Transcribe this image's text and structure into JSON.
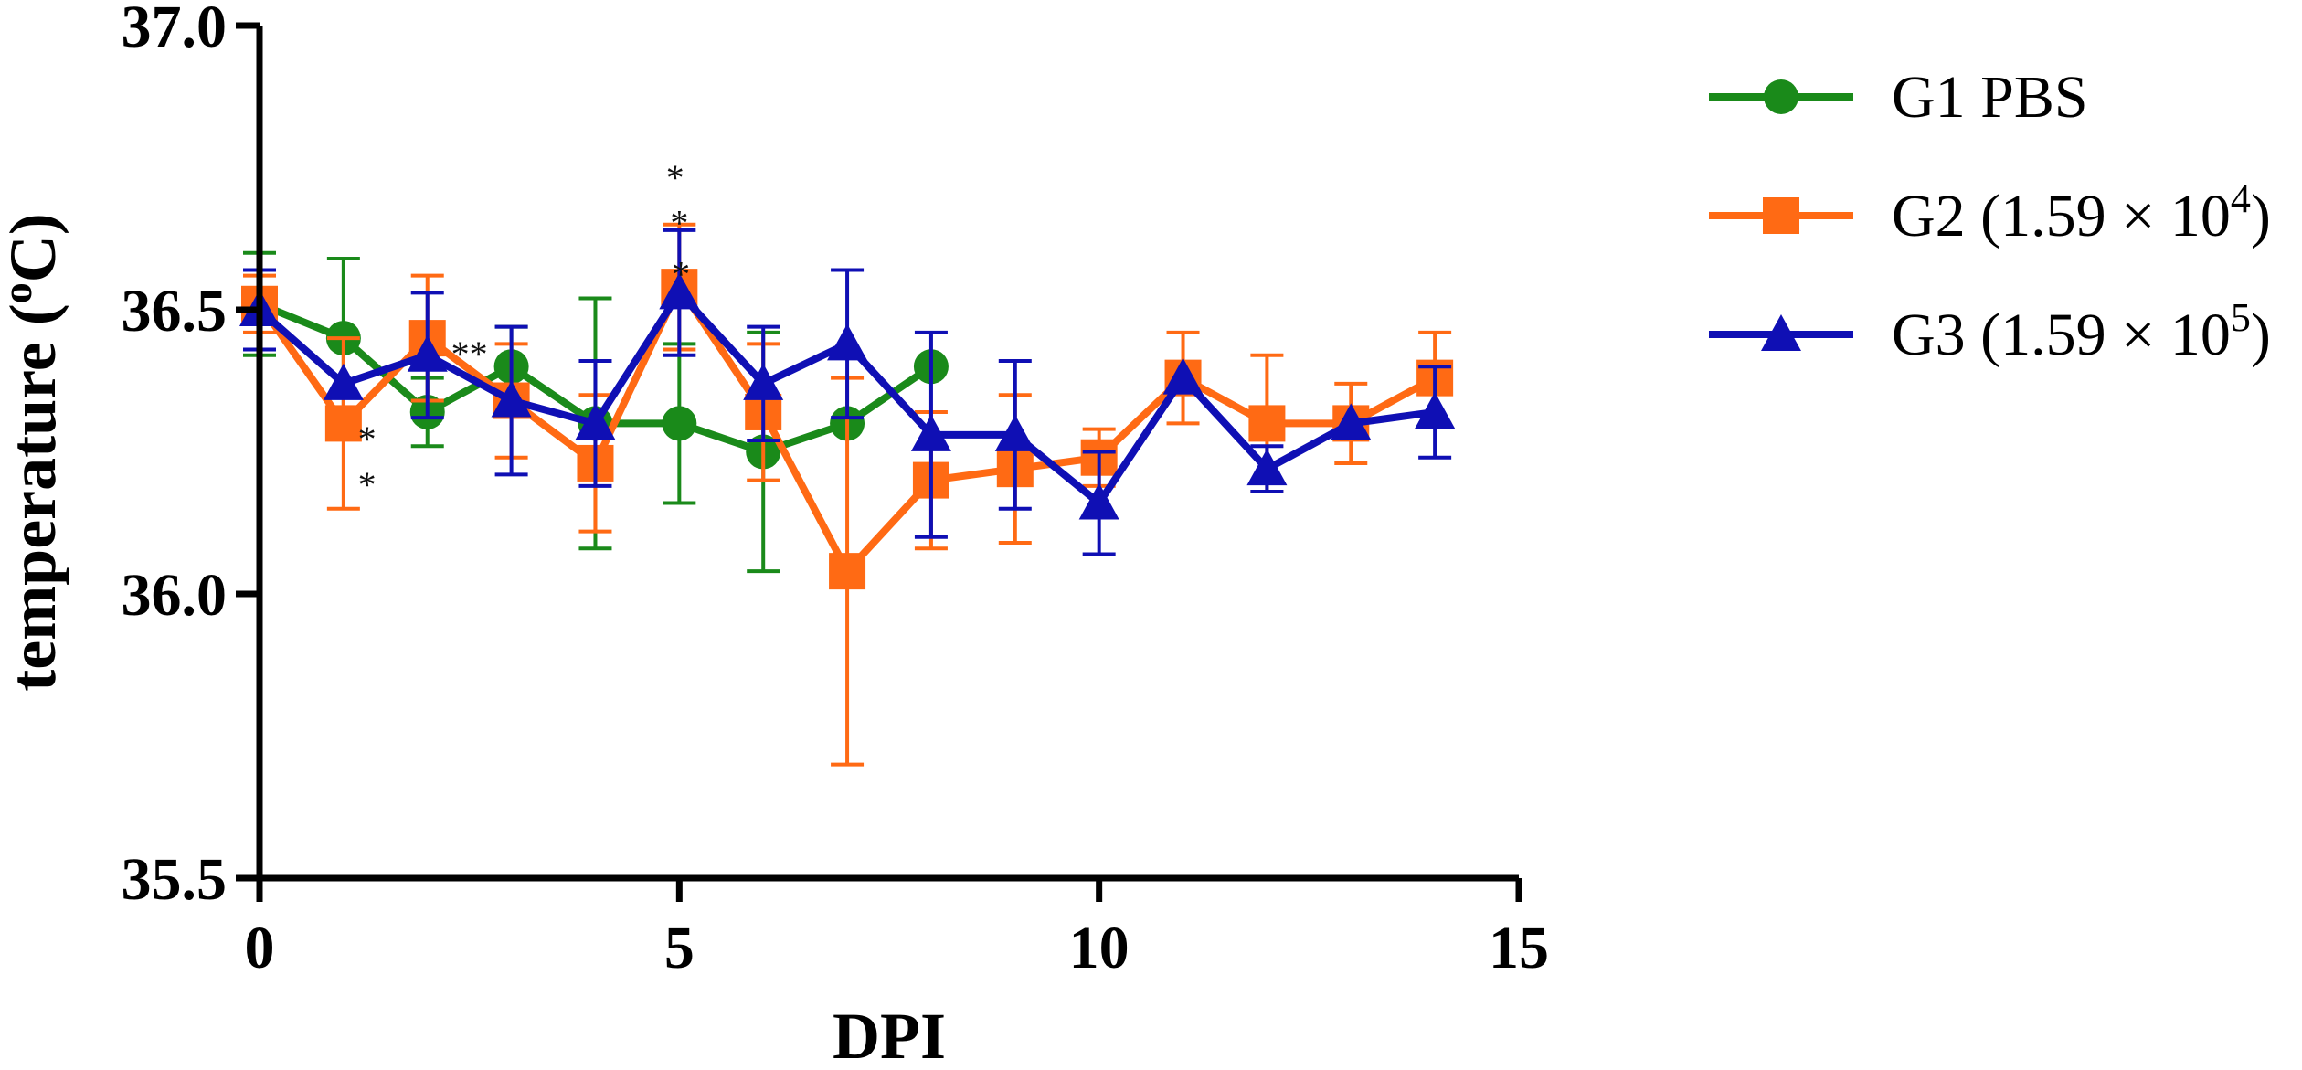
{
  "chart_data": {
    "type": "line",
    "title": "",
    "xlabel": "DPI",
    "ylabel_main": "temperature (",
    "ylabel_sup": "o",
    "ylabel_end": "C)",
    "xlim": [
      0,
      15
    ],
    "ylim": [
      35.5,
      37.0
    ],
    "xticks": [
      "0",
      "5",
      "10",
      "15"
    ],
    "yticks": [
      "35.5",
      "36.0",
      "36.5",
      "37.0"
    ],
    "grid": false,
    "legend_position": "right",
    "series": [
      {
        "name": "G1 PBS",
        "legend_main": "G1 PBS",
        "legend_sup": "",
        "legend_end": "",
        "color": "#1a8a1a",
        "marker": "circle",
        "x": [
          0,
          1,
          2,
          3,
          4,
          5,
          6,
          7,
          8
        ],
        "y": [
          36.51,
          36.45,
          36.32,
          36.4,
          36.3,
          36.3,
          36.25,
          36.3,
          36.4
        ],
        "err": [
          0.09,
          0.14,
          0.06,
          0.07,
          0.22,
          0.14,
          0.21,
          0.0,
          0.0
        ]
      },
      {
        "name": "G2 (1.59 × 10^4)",
        "legend_main": "G2 (1.59 × 10",
        "legend_sup": "4",
        "legend_end": ")",
        "color": "#ff6a14",
        "marker": "square",
        "x": [
          0,
          1,
          2,
          3,
          4,
          5,
          6,
          7,
          8,
          9,
          10,
          11,
          12,
          13,
          14
        ],
        "y": [
          36.51,
          36.3,
          36.45,
          36.34,
          36.23,
          36.54,
          36.32,
          36.04,
          36.2,
          36.22,
          36.24,
          36.38,
          36.3,
          36.3,
          36.38
        ],
        "err": [
          0.05,
          0.15,
          0.11,
          0.1,
          0.12,
          0.11,
          0.12,
          0.34,
          0.12,
          0.13,
          0.05,
          0.08,
          0.12,
          0.07,
          0.08
        ]
      },
      {
        "name": "G3 (1.59 × 10^5)",
        "legend_main": "G3 (1.59 × 10",
        "legend_sup": "5",
        "legend_end": ")",
        "color": "#0f0fb4",
        "marker": "triangle",
        "x": [
          0,
          1,
          2,
          3,
          4,
          5,
          6,
          7,
          8,
          9,
          10,
          11,
          12,
          13,
          14
        ],
        "y": [
          36.5,
          36.37,
          36.42,
          36.34,
          36.3,
          36.53,
          36.37,
          36.44,
          36.28,
          36.28,
          36.16,
          36.38,
          36.22,
          36.3,
          36.32
        ],
        "err": [
          0.07,
          0.0,
          0.11,
          0.13,
          0.11,
          0.11,
          0.1,
          0.13,
          0.18,
          0.13,
          0.09,
          0.0,
          0.04,
          0.0,
          0.08
        ]
      }
    ],
    "annotations": [
      {
        "text": "*",
        "x": 1.28,
        "y": 36.27
      },
      {
        "text": "*",
        "x": 1.28,
        "y": 36.19
      },
      {
        "text": "**",
        "x": 2.5,
        "y": 36.42
      },
      {
        "text": "*",
        "x": 4.95,
        "y": 36.73
      },
      {
        "text": "*",
        "x": 5.0,
        "y": 36.65
      },
      {
        "text": "*",
        "x": 5.02,
        "y": 36.56
      }
    ]
  }
}
